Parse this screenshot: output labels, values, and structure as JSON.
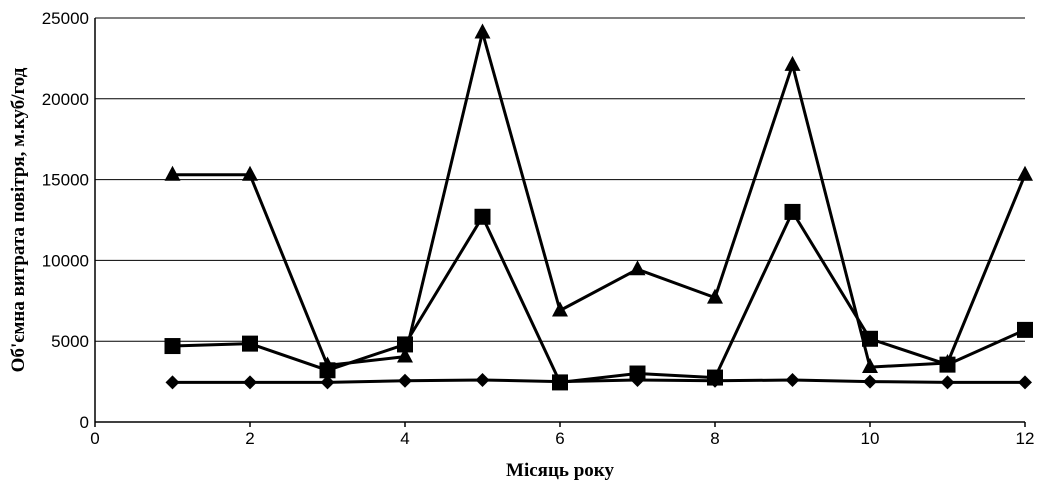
{
  "chart_data": {
    "type": "line",
    "title": "",
    "xlabel": "Місяць року",
    "ylabel": "Об'ємна витрата повітря, м.куб/год",
    "xlim": [
      0,
      12
    ],
    "ylim": [
      0,
      25000
    ],
    "xticks": [
      "0",
      "2",
      "4",
      "6",
      "8",
      "10",
      "12"
    ],
    "yticks": [
      "0",
      "5000",
      "10000",
      "15000",
      "20000",
      "25000"
    ],
    "grid": "horizontal",
    "legend": "none",
    "x": [
      1,
      2,
      3,
      4,
      5,
      6,
      7,
      8,
      9,
      10,
      11,
      12
    ],
    "series": [
      {
        "marker": "diamond",
        "values": [
          2450,
          2450,
          2450,
          2550,
          2600,
          2500,
          2600,
          2550,
          2600,
          2500,
          2450,
          2450
        ]
      },
      {
        "marker": "square",
        "values": [
          4700,
          4850,
          3200,
          4800,
          12700,
          2450,
          3000,
          2750,
          13000,
          5150,
          3550,
          5700
        ]
      },
      {
        "marker": "triangle",
        "values": [
          15300,
          15300,
          3500,
          4050,
          24100,
          6900,
          9450,
          7700,
          22100,
          3400,
          3650,
          15300
        ]
      }
    ]
  }
}
